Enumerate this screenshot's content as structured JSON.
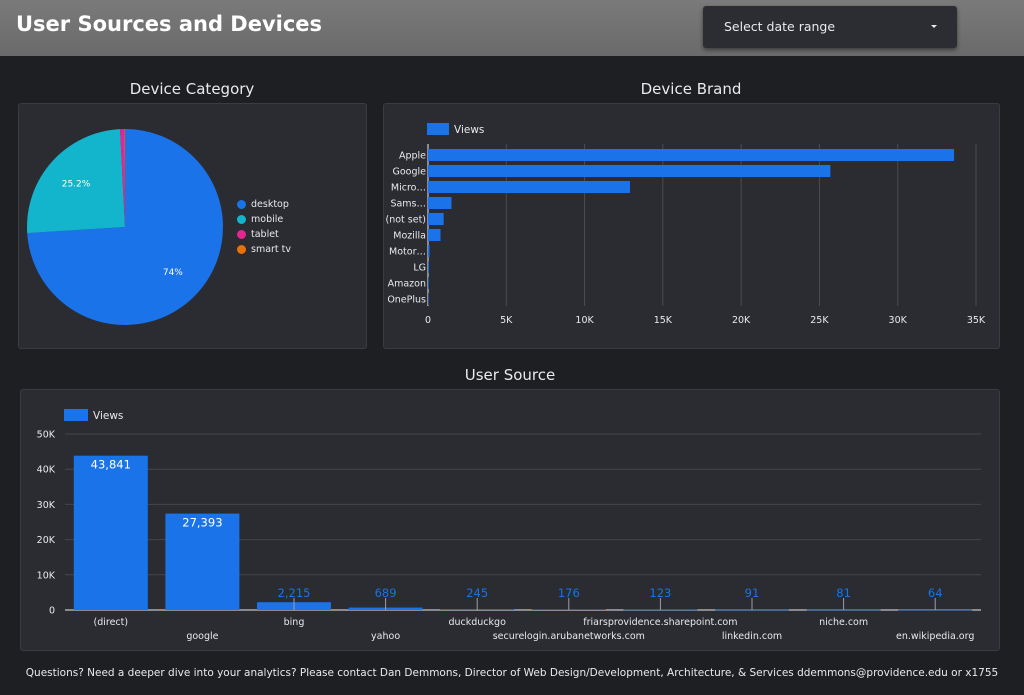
{
  "header": {
    "title": "User Sources and Devices",
    "date_range_label": "Select date range"
  },
  "device_category": {
    "title": "Device Category",
    "chart_data": {
      "type": "pie",
      "categories": [
        "desktop",
        "mobile",
        "tablet",
        "smart tv"
      ],
      "values": [
        74,
        25.2,
        0.7,
        0.1
      ],
      "slice_labels": [
        "74%",
        "25.2%",
        "",
        ""
      ],
      "colors": [
        "#1a73e8",
        "#12b5cb",
        "#e52592",
        "#e8710a"
      ],
      "legend_position": "right"
    }
  },
  "device_brand": {
    "title": "Device Brand",
    "chart_data": {
      "type": "bar",
      "orientation": "horizontal",
      "categories": [
        "Apple",
        "Google",
        "Micro…",
        "Sams…",
        "(not set)",
        "Mozilla",
        "Motor…",
        "LG",
        "Amazon",
        "OnePlus"
      ],
      "series": [
        {
          "name": "Views",
          "values": [
            33600,
            25700,
            12900,
            1500,
            1000,
            800,
            100,
            60,
            40,
            30
          ]
        }
      ],
      "xlim": [
        0,
        35000
      ],
      "x_ticks": [
        "0",
        "5K",
        "10K",
        "15K",
        "20K",
        "25K",
        "30K",
        "35K"
      ],
      "grid": true,
      "legend_position": "top-left",
      "color": "#1a73e8"
    }
  },
  "user_source": {
    "title": "User Source",
    "chart_data": {
      "type": "bar",
      "categories": [
        "(direct)",
        "google",
        "bing",
        "yahoo",
        "duckduckgo",
        "securelogin.arubanetworks.com",
        "friarsprovidence.sharepoint.com",
        "linkedin.com",
        "niche.com",
        "en.wikipedia.org"
      ],
      "series": [
        {
          "name": "Views",
          "values": [
            43841,
            27393,
            2215,
            689,
            245,
            176,
            123,
            91,
            81,
            64
          ]
        }
      ],
      "data_labels": [
        "43,841",
        "27,393",
        "2,215",
        "689",
        "245",
        "176",
        "123",
        "91",
        "81",
        "64"
      ],
      "ylim": [
        0,
        50000
      ],
      "y_ticks": [
        "0",
        "10K",
        "20K",
        "30K",
        "40K",
        "50K"
      ],
      "grid": true,
      "legend_position": "top-left",
      "color": "#1a73e8"
    }
  },
  "footer": {
    "text": "Questions? Need a deeper dive into your analytics? Please contact Dan Demmons, Director of Web Design/Development, Architecture, & Services ddemmons@providence.edu or x1755"
  }
}
